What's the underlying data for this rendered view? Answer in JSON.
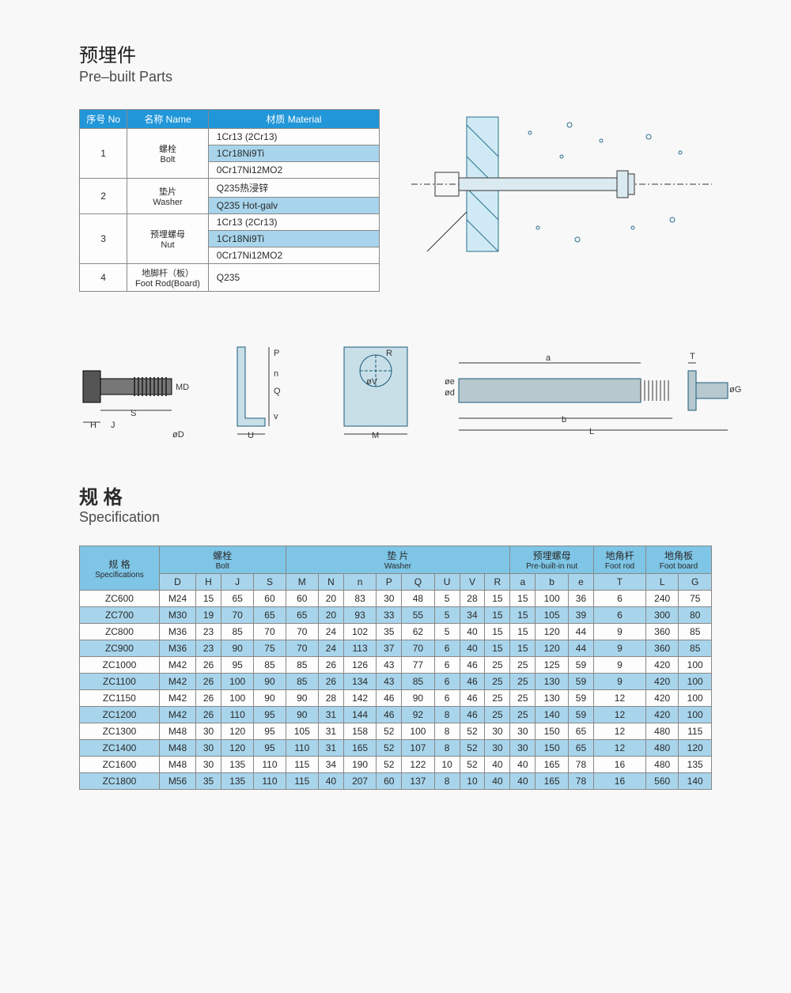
{
  "title": {
    "cn": "预埋件",
    "en": "Pre–built Parts"
  },
  "material_table": {
    "headers": {
      "no": "序号 No",
      "name": "名称 Name",
      "material": "材质 Material"
    },
    "rows": [
      {
        "no": "1",
        "name_cn": "螺栓",
        "name_en": "Bolt",
        "materials": [
          "1Cr13 (2Cr13)",
          "1Cr18Ni9Ti",
          "0Cr17Ni12MO2"
        ]
      },
      {
        "no": "2",
        "name_cn": "垫片",
        "name_en": "Washer",
        "materials": [
          "Q235热浸锌",
          "Q235 Hot-galv"
        ]
      },
      {
        "no": "3",
        "name_cn": "预埋螺母",
        "name_en": "Nut",
        "materials": [
          "1Cr13 (2Cr13)",
          "1Cr18Ni9Ti",
          "0Cr17Ni12MO2"
        ]
      },
      {
        "no": "4",
        "name_cn": "地脚杆（板）",
        "name_en": "Foot Rod(Board)",
        "materials": [
          "Q235"
        ]
      }
    ]
  },
  "drawing_labels": {
    "bolt": {
      "S": "S",
      "J": "J",
      "H": "H",
      "MD": "MD",
      "dD": "øD"
    },
    "angle": {
      "P": "P",
      "n": "n",
      "Q": "Q",
      "v": "v",
      "U": "U"
    },
    "washer": {
      "R": "R",
      "dV": "øV",
      "M": "M"
    },
    "rod": {
      "a": "a",
      "T": "T",
      "de": "øe",
      "dd": "ød",
      "b": "b",
      "L": "L",
      "dG": "øG"
    }
  },
  "spec_title": {
    "cn": "规 格",
    "en": "Specification"
  },
  "spec_table": {
    "group_headers": {
      "spec_cn": "规 格",
      "spec_en": "Specifications",
      "bolt_cn": "螺栓",
      "bolt_en": "Bolt",
      "washer_cn": "垫 片",
      "washer_en": "Washer",
      "nut_cn": "预埋螺母",
      "nut_en": "Pre-built-in nut",
      "footrod_cn": "地角杆",
      "footrod_en": "Foot rod",
      "footboard_cn": "地角板",
      "footboard_en": "Foot board"
    },
    "cols": [
      "D",
      "H",
      "J",
      "S",
      "M",
      "N",
      "n",
      "P",
      "Q",
      "U",
      "V",
      "R",
      "a",
      "b",
      "e",
      "T",
      "L",
      "G"
    ],
    "rows": [
      {
        "spec": "ZC600",
        "v": [
          "M24",
          "15",
          "65",
          "60",
          "60",
          "20",
          "83",
          "30",
          "48",
          "5",
          "28",
          "15",
          "15",
          "100",
          "36",
          "6",
          "240",
          "75"
        ]
      },
      {
        "spec": "ZC700",
        "v": [
          "M30",
          "19",
          "70",
          "65",
          "65",
          "20",
          "93",
          "33",
          "55",
          "5",
          "34",
          "15",
          "15",
          "105",
          "39",
          "6",
          "300",
          "80"
        ]
      },
      {
        "spec": "ZC800",
        "v": [
          "M36",
          "23",
          "85",
          "70",
          "70",
          "24",
          "102",
          "35",
          "62",
          "5",
          "40",
          "15",
          "15",
          "120",
          "44",
          "9",
          "360",
          "85"
        ]
      },
      {
        "spec": "ZC900",
        "v": [
          "M36",
          "23",
          "90",
          "75",
          "70",
          "24",
          "113",
          "37",
          "70",
          "6",
          "40",
          "15",
          "15",
          "120",
          "44",
          "9",
          "360",
          "85"
        ]
      },
      {
        "spec": "ZC1000",
        "v": [
          "M42",
          "26",
          "95",
          "85",
          "85",
          "26",
          "126",
          "43",
          "77",
          "6",
          "46",
          "25",
          "25",
          "125",
          "59",
          "9",
          "420",
          "100"
        ]
      },
      {
        "spec": "ZC1100",
        "v": [
          "M42",
          "26",
          "100",
          "90",
          "85",
          "26",
          "134",
          "43",
          "85",
          "6",
          "46",
          "25",
          "25",
          "130",
          "59",
          "9",
          "420",
          "100"
        ]
      },
      {
        "spec": "ZC1150",
        "v": [
          "M42",
          "26",
          "100",
          "90",
          "90",
          "28",
          "142",
          "46",
          "90",
          "6",
          "46",
          "25",
          "25",
          "130",
          "59",
          "12",
          "420",
          "100"
        ]
      },
      {
        "spec": "ZC1200",
        "v": [
          "M42",
          "26",
          "110",
          "95",
          "90",
          "31",
          "144",
          "46",
          "92",
          "8",
          "46",
          "25",
          "25",
          "140",
          "59",
          "12",
          "420",
          "100"
        ]
      },
      {
        "spec": "ZC1300",
        "v": [
          "M48",
          "30",
          "120",
          "95",
          "105",
          "31",
          "158",
          "52",
          "100",
          "8",
          "52",
          "30",
          "30",
          "150",
          "65",
          "12",
          "480",
          "115"
        ]
      },
      {
        "spec": "ZC1400",
        "v": [
          "M48",
          "30",
          "120",
          "95",
          "110",
          "31",
          "165",
          "52",
          "107",
          "8",
          "52",
          "30",
          "30",
          "150",
          "65",
          "12",
          "480",
          "120"
        ]
      },
      {
        "spec": "ZC1600",
        "v": [
          "M48",
          "30",
          "135",
          "110",
          "115",
          "34",
          "190",
          "52",
          "122",
          "10",
          "52",
          "40",
          "40",
          "165",
          "78",
          "16",
          "480",
          "135"
        ]
      },
      {
        "spec": "ZC1800",
        "v": [
          "M56",
          "35",
          "135",
          "110",
          "115",
          "40",
          "207",
          "60",
          "137",
          "8",
          "10",
          "40",
          "40",
          "165",
          "78",
          "16",
          "560",
          "140"
        ]
      }
    ]
  },
  "colors": {
    "header_blue": "#2196d8",
    "row_blue": "#a8d5ec",
    "hdr_blue2": "#7ec5e6"
  }
}
